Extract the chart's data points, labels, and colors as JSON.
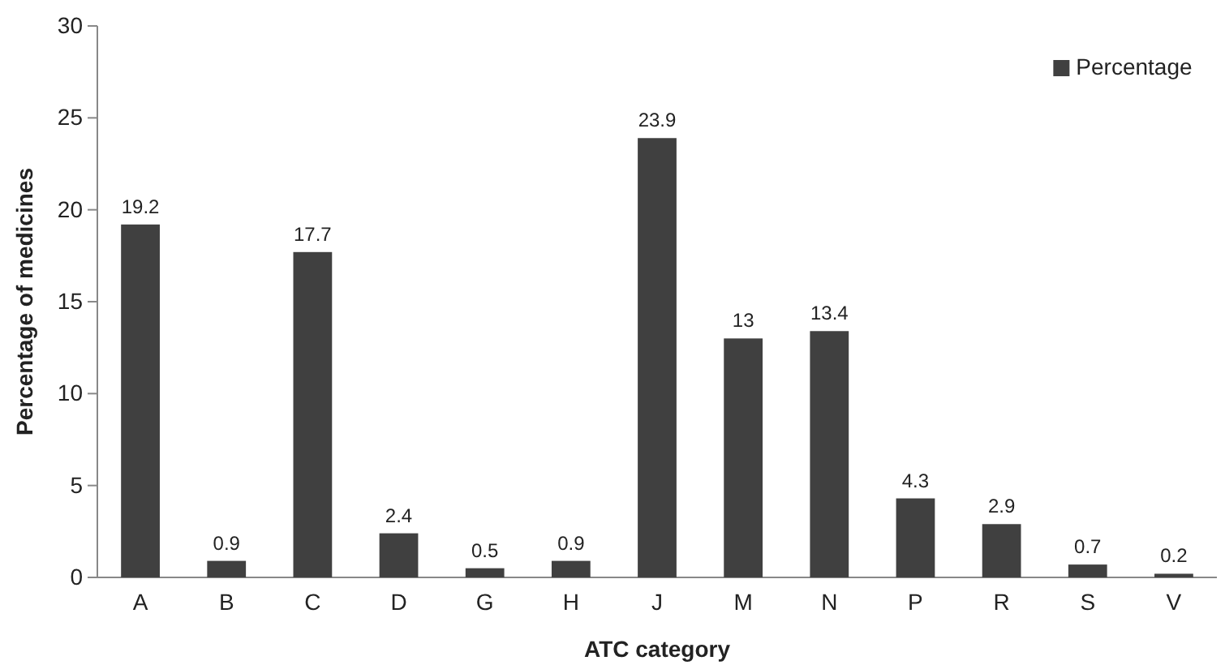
{
  "chart_data": {
    "type": "bar",
    "xlabel": "ATC category",
    "ylabel": "Percentage  of medicines",
    "categories": [
      "A",
      "B",
      "C",
      "D",
      "G",
      "H",
      "J",
      "M",
      "N",
      "P",
      "R",
      "S",
      "V"
    ],
    "series": [
      {
        "name": "Percentage",
        "color": "#404040",
        "values": [
          19.2,
          0.9,
          17.7,
          2.4,
          0.5,
          0.9,
          23.9,
          13,
          13.4,
          4.3,
          2.9,
          0.7,
          0.2
        ]
      }
    ],
    "ylim": [
      0,
      30
    ],
    "yticks": [
      0,
      5,
      10,
      15,
      20,
      25,
      30
    ],
    "grid": false,
    "legend": "top right",
    "data_labels": true
  }
}
